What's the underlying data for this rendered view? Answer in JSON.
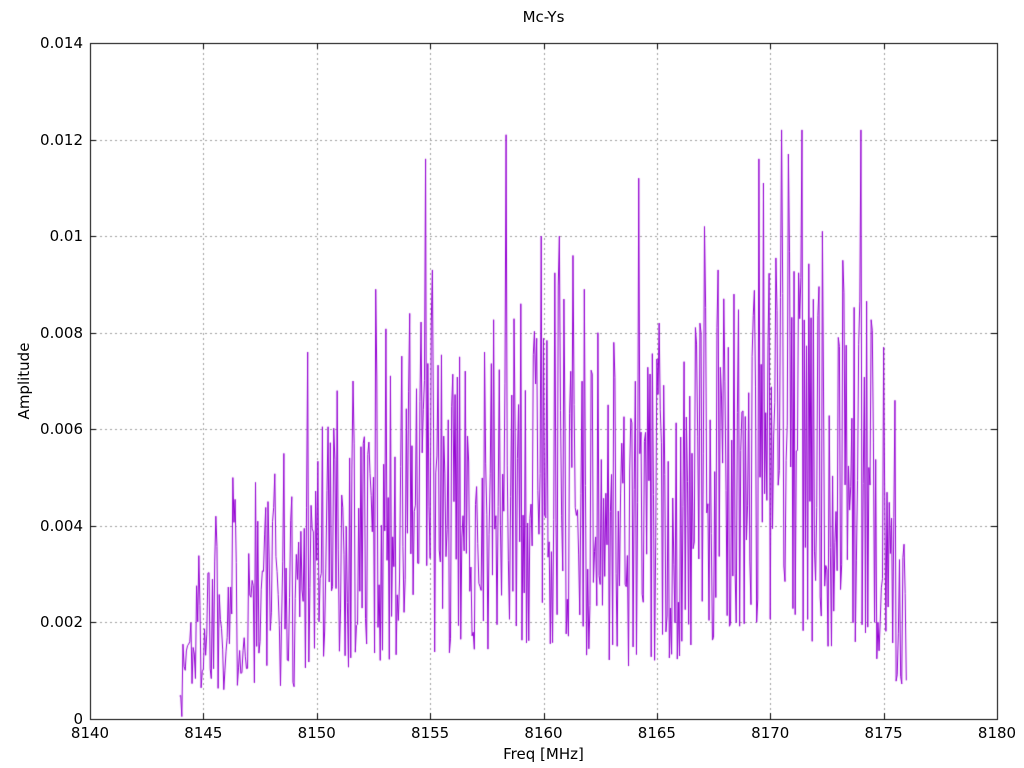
{
  "chart": {
    "title": "Mc-Ys",
    "xlabel": "Freq [MHz]",
    "ylabel": "Amplitude"
  },
  "chart_data": {
    "type": "line",
    "title": "Mc-Ys",
    "xlabel": "Freq [MHz]",
    "ylabel": "Amplitude",
    "xlim": [
      8140,
      8180
    ],
    "ylim": [
      0,
      0.014
    ],
    "xticks": {
      "values": [
        8140,
        8145,
        8150,
        8155,
        8160,
        8165,
        8170,
        8175,
        8180
      ],
      "labels": [
        "8140",
        "8145",
        "8150",
        "8155",
        "8160",
        "8165",
        "8170",
        "8175",
        "8180"
      ]
    },
    "yticks": {
      "values": [
        0,
        0.002,
        0.004,
        0.006,
        0.008,
        0.01,
        0.012,
        0.014
      ],
      "labels": [
        "0",
        "0.002",
        "0.004",
        "0.006",
        "0.008",
        "0.01",
        "0.012",
        "0.014"
      ]
    },
    "grid": {
      "visible": true,
      "style": "dashed",
      "color": "#a0a0a0"
    },
    "legend": "none",
    "line_color": "#9400d3",
    "axis_color": "#000000",
    "background_color": "#ffffff",
    "tick_style": "inward-mirrored",
    "data_range_mhz": [
      8143.95,
      8176.0
    ],
    "noise": {
      "seed": 1337,
      "step_mhz": 0.05,
      "exponent": 1.2
    },
    "envelope": {
      "x": [
        8144,
        8145,
        8146,
        8147,
        8148,
        8149,
        8150,
        8151,
        8152,
        8153,
        8154,
        8155,
        8156,
        8157,
        8158,
        8159,
        8160,
        8161,
        8162,
        8163,
        8164,
        8165,
        8166,
        8167,
        8168,
        8169,
        8170,
        8171,
        8172,
        8173,
        8174,
        8175,
        8176
      ],
      "max": [
        0.0023,
        0.004,
        0.0048,
        0.0047,
        0.0053,
        0.005,
        0.007,
        0.0066,
        0.0068,
        0.0082,
        0.0078,
        0.0088,
        0.0072,
        0.0075,
        0.0085,
        0.0082,
        0.0094,
        0.0093,
        0.0077,
        0.0075,
        0.0073,
        0.0078,
        0.0072,
        0.0088,
        0.0087,
        0.0094,
        0.0102,
        0.01,
        0.0096,
        0.0091,
        0.0094,
        0.0074,
        0.004
      ],
      "min": [
        0.0002,
        0.0005,
        0.0006,
        0.0006,
        0.0007,
        0.0006,
        0.0008,
        0.001,
        0.001,
        0.0012,
        0.001,
        0.0012,
        0.0012,
        0.0014,
        0.0012,
        0.0014,
        0.0015,
        0.0015,
        0.0012,
        0.0012,
        0.001,
        0.0012,
        0.0012,
        0.0015,
        0.0015,
        0.0015,
        0.0018,
        0.0018,
        0.0015,
        0.0015,
        0.0015,
        0.001,
        0.0006
      ]
    },
    "peaks": [
      [
        8144.05,
        5e-05
      ],
      [
        8145.55,
        0.0042
      ],
      [
        8146.3,
        0.005
      ],
      [
        8147.3,
        0.0049
      ],
      [
        8148.55,
        0.0055
      ],
      [
        8149.6,
        0.0076
      ],
      [
        8150.9,
        0.0068
      ],
      [
        8151.6,
        0.007
      ],
      [
        8152.6,
        0.0089
      ],
      [
        8154.1,
        0.0084
      ],
      [
        8154.8,
        0.0116
      ],
      [
        8155.1,
        0.0093
      ],
      [
        8156.3,
        0.0075
      ],
      [
        8157.4,
        0.0076
      ],
      [
        8158.35,
        0.0121
      ],
      [
        8159.0,
        0.0086
      ],
      [
        8159.9,
        0.01
      ],
      [
        8160.7,
        0.01
      ],
      [
        8161.3,
        0.0096
      ],
      [
        8161.8,
        0.0089
      ],
      [
        8162.4,
        0.008
      ],
      [
        8163.1,
        0.0078
      ],
      [
        8164.2,
        0.0112
      ],
      [
        8165.1,
        0.0082
      ],
      [
        8166.2,
        0.0074
      ],
      [
        8167.1,
        0.0102
      ],
      [
        8167.7,
        0.0093
      ],
      [
        8168.4,
        0.0088
      ],
      [
        8169.5,
        0.0116
      ],
      [
        8169.7,
        0.0111
      ],
      [
        8170.5,
        0.0122
      ],
      [
        8170.8,
        0.0117
      ],
      [
        8171.4,
        0.0122
      ],
      [
        8172.3,
        0.0101
      ],
      [
        8173.2,
        0.0095
      ],
      [
        8174.0,
        0.0122
      ],
      [
        8175.0,
        0.0077
      ],
      [
        8175.5,
        0.0066
      ],
      [
        8175.95,
        0.0026
      ],
      [
        8176.0,
        0.0008
      ]
    ]
  }
}
